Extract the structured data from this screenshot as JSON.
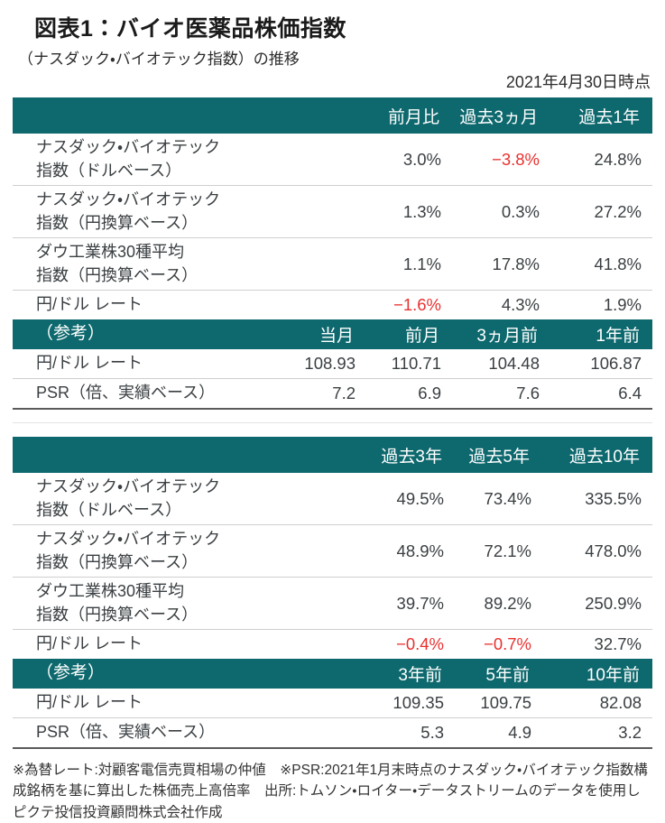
{
  "page": {
    "title": "図表1：バイオ医薬品株価指数",
    "subtitle": "（ナスダック・バイオテック指数）の推移",
    "as_of": "2021年4月30日時点",
    "footnote": "※為替レート:対顧客電信売買相場の仲値　※PSR:2021年1月末時点のナスダック・バイオテック指数構成銘柄を基に算出した株価売上高倍率　出所:トムソン・ロイター・データストリームのデータを使用しピクテ投信投資顧問株式会社作成"
  },
  "colors": {
    "header_bg": "#0e696e",
    "header_text": "#ffffff",
    "negative": "#e8312f",
    "body_text": "#3a3f42"
  },
  "chart_data": [
    {
      "type": "table",
      "rows": [
        {
          "kind": "header",
          "cells": [
            "",
            "",
            "前月比",
            "過去3ヵ月",
            "過去1年"
          ]
        },
        {
          "kind": "row2 afterhead",
          "cells": [
            "ナスダック・バイオテック\n指数（ドルベース）",
            "",
            "3.0%",
            "−3.8%",
            "24.8%"
          ]
        },
        {
          "kind": "row2",
          "cells": [
            "ナスダック・バイオテック\n指数（円換算ベース）",
            "",
            "1.3%",
            "0.3%",
            "27.2%"
          ]
        },
        {
          "kind": "row2",
          "cells": [
            "ダウ工業株30種平均\n指数（円換算ベース）",
            "",
            "1.1%",
            "17.8%",
            "41.8%"
          ]
        },
        {
          "kind": "row1",
          "cells": [
            "円/ドル レート",
            "",
            "−1.6%",
            "4.3%",
            "1.9%"
          ]
        },
        {
          "kind": "refheader",
          "cells": [
            "（参考）",
            "当月",
            "前月",
            "3ヵ月前",
            "1年前"
          ]
        },
        {
          "kind": "row1 afterhead",
          "cells": [
            "円/ドル レート",
            "108.93",
            "110.71",
            "104.48",
            "106.87"
          ]
        },
        {
          "kind": "row1 last",
          "cells": [
            "PSR（倍、実績ベース）",
            "7.2",
            "6.9",
            "7.6",
            "6.4"
          ]
        }
      ]
    },
    {
      "type": "table",
      "rows": [
        {
          "kind": "header",
          "cells": [
            "",
            "過去3年",
            "過去5年",
            "過去10年"
          ]
        },
        {
          "kind": "row2 afterhead",
          "cells": [
            "ナスダック・バイオテック\n指数（ドルベース）",
            "49.5%",
            "73.4%",
            "335.5%"
          ]
        },
        {
          "kind": "row2",
          "cells": [
            "ナスダック・バイオテック\n指数（円換算ベース）",
            "48.9%",
            "72.1%",
            "478.0%"
          ]
        },
        {
          "kind": "row2",
          "cells": [
            "ダウ工業株30種平均\n指数（円換算ベース）",
            "39.7%",
            "89.2%",
            "250.9%"
          ]
        },
        {
          "kind": "row1",
          "cells": [
            "円/ドル レート",
            "−0.4%",
            "−0.7%",
            "32.7%"
          ]
        },
        {
          "kind": "refheader",
          "cells": [
            "（参考）",
            "3年前",
            "5年前",
            "10年前"
          ]
        },
        {
          "kind": "row1 afterhead",
          "cells": [
            "円/ドル レート",
            "109.35",
            "109.75",
            "82.08"
          ]
        },
        {
          "kind": "row1 last",
          "cells": [
            "PSR（倍、実績ベース）",
            "5.3",
            "4.9",
            "3.2"
          ]
        }
      ]
    }
  ]
}
